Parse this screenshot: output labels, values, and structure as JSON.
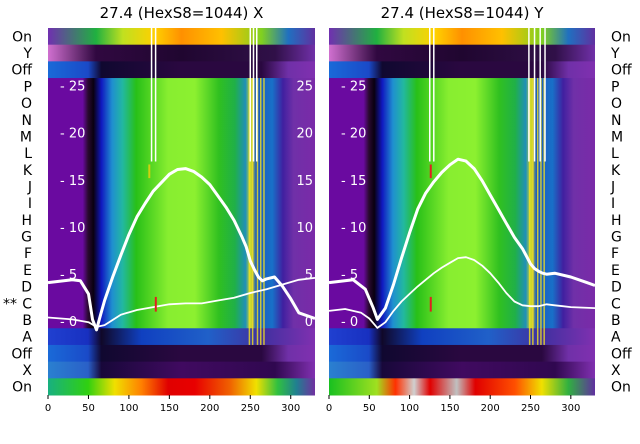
{
  "chart_data": [
    {
      "type": "heatmap",
      "title": "27.4 (HexS8=1044) X",
      "row_labels": [
        "On",
        "Y",
        "Off",
        "P",
        "O",
        "N",
        "M",
        "L",
        "K",
        "J",
        "I",
        "H",
        "G",
        "F",
        "E",
        "D",
        "C",
        "B",
        "A",
        "Off",
        "X",
        "On"
      ],
      "row_marker": {
        "row": "C",
        "text": "**"
      },
      "x_ticks": [
        0,
        50,
        100,
        150,
        200,
        250,
        300
      ],
      "xlim": [
        0,
        330
      ],
      "y_ticks": [
        0,
        5,
        10,
        15,
        20,
        25
      ],
      "y_tick_labels_left": [
        "0",
        "5",
        "10",
        "15",
        "20",
        "25"
      ],
      "y_tick_labels_right": [
        "0",
        "5",
        "10",
        "15",
        "20",
        "25"
      ],
      "ylim": [
        -2.5,
        27.5
      ],
      "series": [
        {
          "color": "#ffffff",
          "x": [
            0,
            30,
            40,
            50,
            55,
            60,
            65,
            70,
            80,
            90,
            100,
            110,
            120,
            130,
            140,
            150,
            160,
            170,
            180,
            190,
            200,
            210,
            220,
            230,
            240,
            245,
            250,
            255,
            260,
            265,
            270,
            280,
            290,
            300,
            310,
            330
          ],
          "y": [
            4.2,
            4.5,
            4.4,
            3.0,
            0.3,
            -0.8,
            0.8,
            2.3,
            4.8,
            7.1,
            9.3,
            11.2,
            12.6,
            13.9,
            14.8,
            15.7,
            16.2,
            16.3,
            16.0,
            15.4,
            14.6,
            13.4,
            12.2,
            10.8,
            9.0,
            8.0,
            6.5,
            5.6,
            4.8,
            4.4,
            4.6,
            4.8,
            3.8,
            2.5,
            1.0,
            0.4
          ]
        },
        {
          "color": "#ffffff",
          "x": [
            0,
            30,
            50,
            60,
            70,
            90,
            110,
            130,
            150,
            170,
            190,
            210,
            230,
            250,
            270,
            290,
            310,
            330
          ],
          "y": [
            0.5,
            0.3,
            0.0,
            -0.5,
            -0.3,
            0.8,
            1.3,
            1.6,
            1.9,
            2.0,
            2.0,
            2.3,
            2.6,
            3.1,
            3.5,
            4.0,
            4.5,
            4.7
          ]
        }
      ]
    },
    {
      "type": "heatmap",
      "title": "27.4 (HexS8=1044) Y",
      "row_labels": [
        "On",
        "Y",
        "Off",
        "P",
        "O",
        "N",
        "M",
        "L",
        "K",
        "J",
        "I",
        "H",
        "G",
        "F",
        "E",
        "D",
        "C",
        "B",
        "A",
        "Off",
        "X",
        "On"
      ],
      "x_ticks": [
        0,
        50,
        100,
        150,
        200,
        250,
        300
      ],
      "xlim": [
        0,
        330
      ],
      "y_ticks": [
        0,
        5,
        10,
        15,
        20,
        25
      ],
      "y_tick_labels_left": [
        "0",
        "5",
        "10",
        "15",
        "20",
        "25"
      ],
      "ylim": [
        -2.5,
        27.5
      ],
      "series": [
        {
          "color": "#ffffff",
          "x": [
            0,
            30,
            45,
            55,
            60,
            70,
            80,
            90,
            100,
            110,
            120,
            130,
            140,
            150,
            160,
            170,
            180,
            190,
            200,
            210,
            220,
            230,
            240,
            245,
            250,
            255,
            260,
            265,
            270,
            280,
            300,
            320,
            330
          ],
          "y": [
            4.2,
            4.5,
            3.5,
            1.5,
            0.3,
            1.5,
            4.0,
            6.8,
            9.5,
            12.0,
            13.7,
            14.9,
            15.9,
            16.7,
            17.3,
            17.1,
            16.3,
            15.0,
            13.5,
            12.0,
            10.5,
            9.0,
            7.8,
            7.0,
            6.2,
            5.7,
            5.4,
            5.2,
            5.1,
            5.2,
            4.8,
            4.2,
            3.9
          ]
        },
        {
          "color": "#ffffff",
          "x": [
            0,
            20,
            40,
            50,
            60,
            70,
            80,
            90,
            100,
            110,
            120,
            130,
            140,
            150,
            160,
            170,
            180,
            190,
            200,
            210,
            220,
            230,
            240,
            250,
            260,
            270,
            280,
            290,
            300,
            330
          ],
          "y": [
            1.2,
            1.4,
            1.0,
            0.4,
            -0.6,
            0.0,
            1.2,
            2.2,
            3.0,
            3.8,
            4.5,
            5.2,
            5.8,
            6.3,
            6.8,
            6.9,
            6.6,
            6.0,
            5.2,
            4.2,
            3.1,
            2.2,
            1.8,
            1.7,
            1.7,
            1.9,
            1.8,
            1.7,
            1.6,
            1.5
          ]
        }
      ]
    }
  ]
}
